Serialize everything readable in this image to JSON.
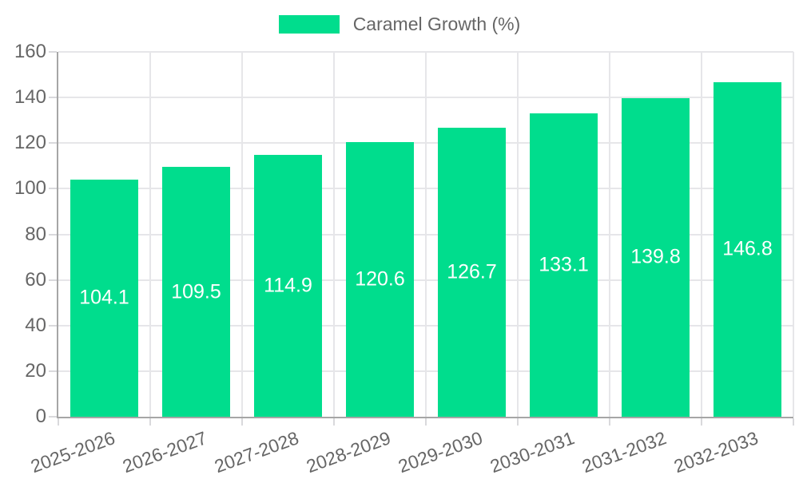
{
  "chart_data": {
    "type": "bar",
    "title": "",
    "legend": {
      "label": "Caramel Growth (%)",
      "position": "top-center"
    },
    "categories": [
      "2025-2026",
      "2026-2027",
      "2027-2028",
      "2028-2029",
      "2029-2030",
      "2030-2031",
      "2031-2032",
      "2032-2033"
    ],
    "series": [
      {
        "name": "Caramel Growth (%)",
        "values": [
          104.1,
          109.5,
          114.9,
          120.6,
          126.7,
          133.1,
          139.8,
          146.8
        ]
      }
    ],
    "value_labels": [
      "104.1",
      "109.5",
      "114.9",
      "120.6",
      "126.7",
      "133.1",
      "139.8",
      "146.8"
    ],
    "ylabel": "",
    "xlabel": "",
    "ylim": [
      0,
      160
    ],
    "yticks": [
      0,
      20,
      40,
      60,
      80,
      100,
      120,
      140,
      160
    ],
    "grid": true,
    "x_label_rotation_deg": -20,
    "colors": {
      "bar": "#00DD8D",
      "value_label": "#FFFFFF",
      "axis_text": "#666666",
      "gridline": "#E6E6E9",
      "tick_mark": "#D9D9DC",
      "axis_line": "#A6A6A6",
      "background": "#FFFFFF"
    }
  }
}
